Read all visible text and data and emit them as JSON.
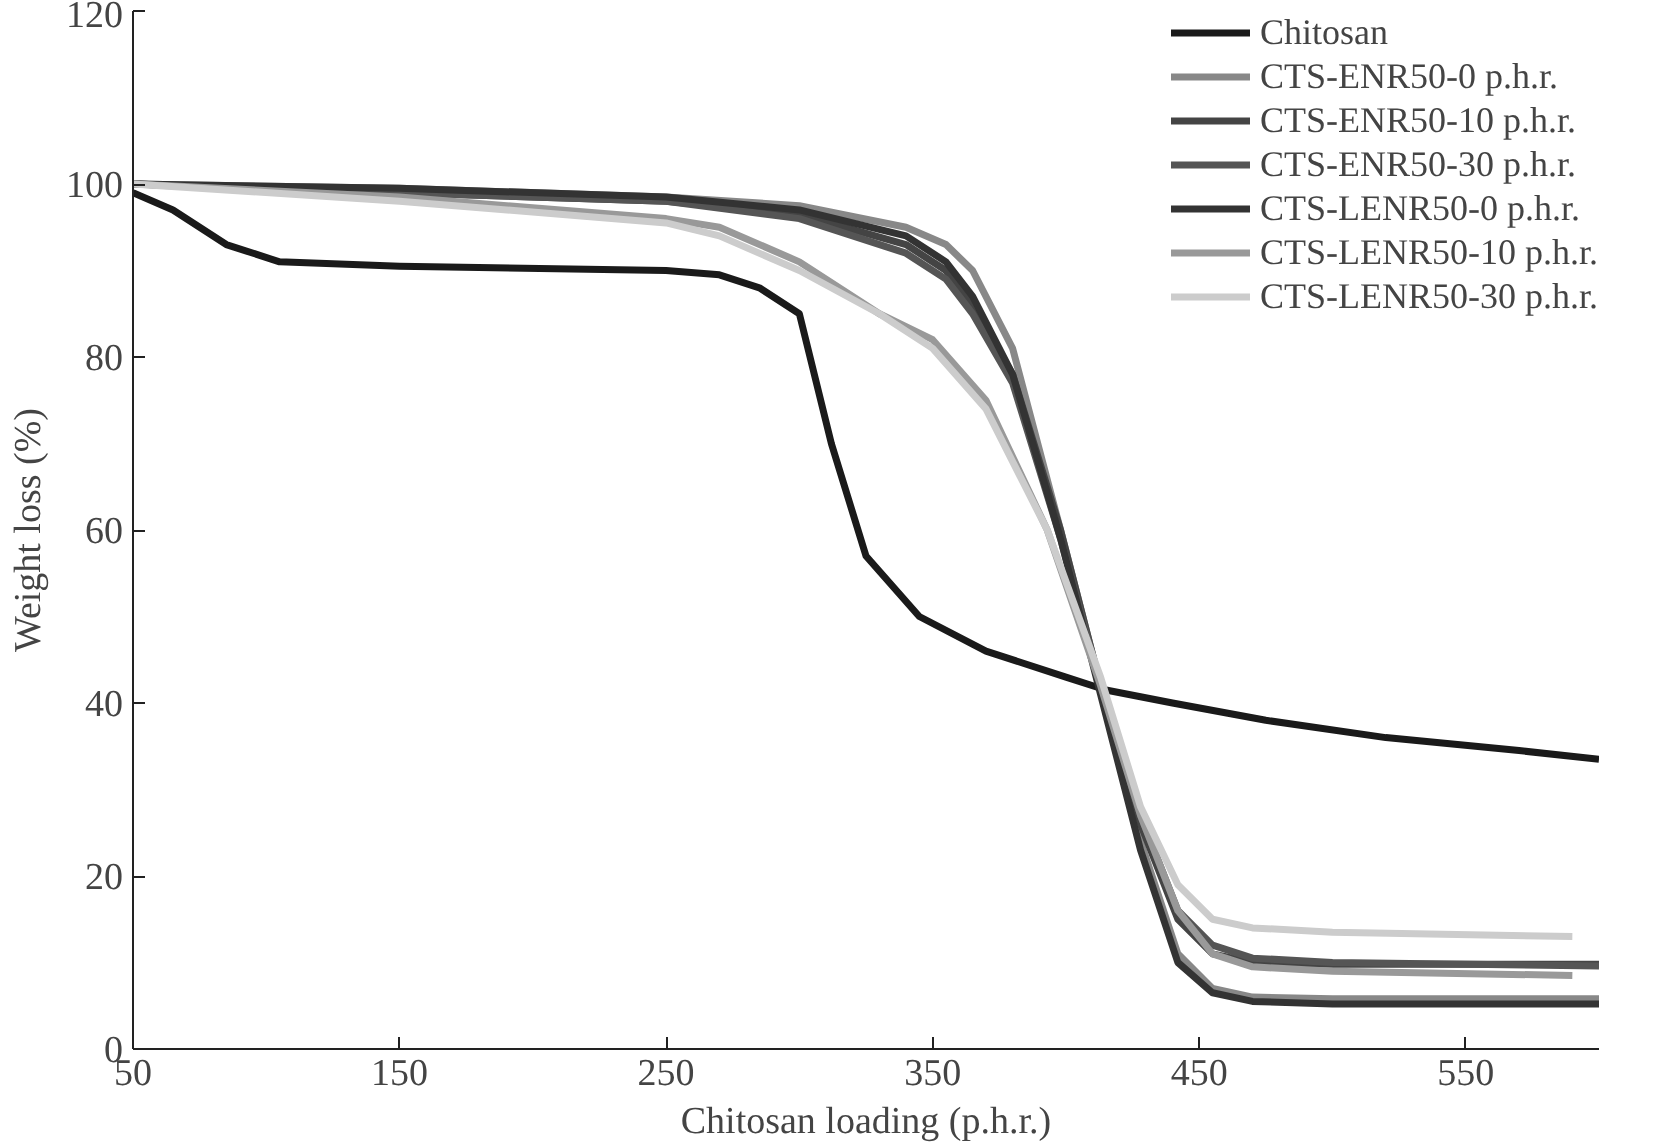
{
  "chart_data": {
    "type": "line",
    "xlabel": "Chitosan loading (p.h.r.)",
    "ylabel": "Weight loss (%)",
    "xlim": [
      50,
      600
    ],
    "ylim": [
      0,
      120
    ],
    "xticks": [
      50,
      150,
      250,
      350,
      450,
      550
    ],
    "yticks": [
      0,
      20,
      40,
      60,
      80,
      100,
      120
    ],
    "grid": false,
    "legend": "top right",
    "marker": "none",
    "line_style": "solid",
    "series": [
      {
        "name": "Chitosan",
        "color": "#1a1a1a",
        "x": [
          50,
          65,
          85,
          105,
          150,
          250,
          270,
          285,
          300,
          312,
          325,
          345,
          370,
          400,
          415,
          440,
          475,
          520,
          570,
          600
        ],
        "values": [
          99,
          97,
          93,
          91,
          90.5,
          90,
          89.5,
          88,
          85,
          70,
          57,
          50,
          46,
          43,
          41.5,
          40,
          38,
          36,
          34.5,
          33.5
        ]
      },
      {
        "name": "CTS-ENR50-0 p.h.r.",
        "color": "#888888",
        "x": [
          50,
          150,
          250,
          300,
          340,
          355,
          365,
          380,
          398,
          413,
          428,
          442,
          455,
          470,
          500,
          600
        ],
        "values": [
          100,
          99.5,
          98.5,
          97.5,
          95,
          93,
          90,
          81,
          60,
          42,
          24,
          11,
          7,
          6,
          5.8,
          5.8
        ]
      },
      {
        "name": "CTS-ENR50-10 p.h.r.",
        "color": "#444444",
        "x": [
          50,
          150,
          250,
          300,
          340,
          355,
          365,
          380,
          398,
          413,
          428,
          442,
          455,
          470,
          500,
          600
        ],
        "values": [
          100,
          99,
          98,
          96.5,
          93,
          90,
          86,
          78,
          60,
          42,
          26,
          15,
          11,
          10,
          9.8,
          9.8
        ]
      },
      {
        "name": "CTS-ENR50-30 p.h.r.",
        "color": "#555555",
        "x": [
          50,
          150,
          250,
          300,
          340,
          355,
          365,
          380,
          398,
          413,
          428,
          442,
          455,
          470,
          500,
          600
        ],
        "values": [
          100,
          99,
          98,
          96,
          92,
          89,
          85,
          77,
          59,
          42,
          27,
          16,
          12,
          10.5,
          10,
          9.6
        ]
      },
      {
        "name": "CTS-LENR50-0 p.h.r.",
        "color": "#333333",
        "x": [
          50,
          150,
          250,
          300,
          340,
          355,
          365,
          380,
          398,
          413,
          428,
          442,
          455,
          470,
          500,
          600
        ],
        "values": [
          100,
          99.5,
          98.5,
          97,
          94,
          91,
          87,
          78,
          59,
          41,
          23,
          10,
          6.5,
          5.5,
          5.2,
          5.2
        ]
      },
      {
        "name": "CTS-LENR50-10 p.h.r.",
        "color": "#999999",
        "x": [
          50,
          150,
          250,
          270,
          300,
          330,
          350,
          370,
          393,
          413,
          428,
          442,
          455,
          470,
          500,
          590
        ],
        "values": [
          100,
          98.5,
          96,
          95,
          91,
          85,
          82,
          75,
          60,
          42,
          27,
          16,
          11,
          9.5,
          9,
          8.5
        ]
      },
      {
        "name": "CTS-LENR50-30 p.h.r.",
        "color": "#cccccc",
        "x": [
          50,
          150,
          250,
          270,
          300,
          330,
          350,
          370,
          393,
          413,
          428,
          442,
          455,
          470,
          500,
          590
        ],
        "values": [
          100,
          98,
          95.5,
          94,
          90,
          85,
          81,
          74,
          60,
          43,
          28,
          19,
          15,
          14,
          13.5,
          13
        ]
      }
    ]
  }
}
